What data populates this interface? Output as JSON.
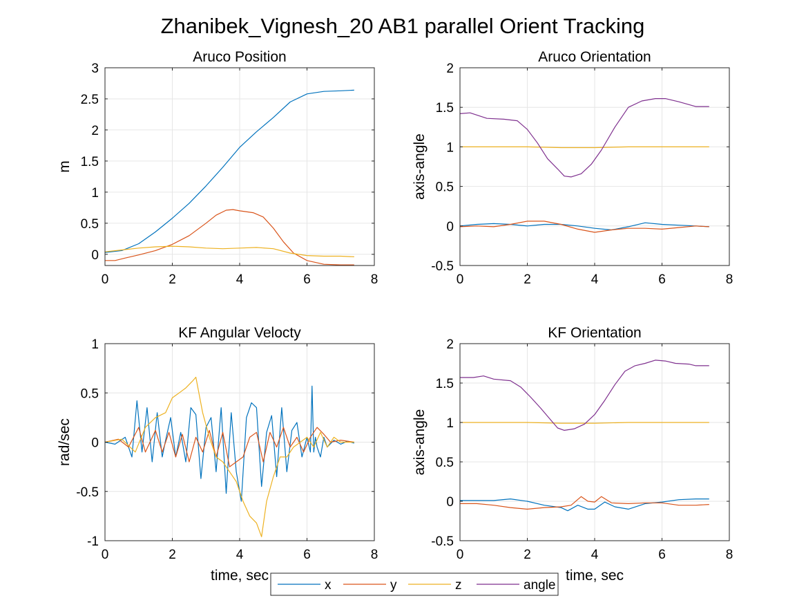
{
  "figure": {
    "title": "Zhanibek_Vignesh_20 AB1 parallel Orient Tracking"
  },
  "colors": {
    "x": "#0072bd",
    "y": "#d95319",
    "z": "#edb120",
    "angle": "#7e2f8e",
    "grid": "#e6e6e6",
    "axis": "#262626"
  },
  "legend": {
    "placement": "bottom-center",
    "entries": [
      {
        "key": "x",
        "label": "x"
      },
      {
        "key": "y",
        "label": "y"
      },
      {
        "key": "z",
        "label": "z"
      },
      {
        "key": "angle",
        "label": "angle"
      }
    ]
  },
  "chart_data": [
    {
      "id": "aruco-position",
      "type": "line",
      "title": "Aruco Position",
      "xlabel": "",
      "ylabel": "m",
      "xlim": [
        0,
        8
      ],
      "ylim": [
        -0.18,
        3
      ],
      "xticks": [
        0,
        2,
        4,
        6,
        8
      ],
      "yticks": [
        0,
        0.5,
        1,
        1.5,
        2,
        2.5,
        3
      ],
      "grid": true,
      "series": [
        {
          "key": "x",
          "x": [
            0,
            0.5,
            1,
            1.5,
            2,
            2.5,
            3,
            3.5,
            4,
            4.5,
            5,
            5.5,
            6,
            6.5,
            7,
            7.4
          ],
          "y": [
            0.03,
            0.06,
            0.17,
            0.36,
            0.58,
            0.82,
            1.1,
            1.4,
            1.72,
            1.97,
            2.2,
            2.45,
            2.58,
            2.62,
            2.63,
            2.64
          ]
        },
        {
          "key": "y",
          "x": [
            0,
            0.3,
            0.6,
            1,
            1.5,
            2,
            2.5,
            3,
            3.3,
            3.6,
            3.8,
            4,
            4.4,
            4.7,
            5,
            5.3,
            5.6,
            6,
            6.5,
            7,
            7.4
          ],
          "y": [
            -0.1,
            -0.1,
            -0.06,
            -0.01,
            0.06,
            0.16,
            0.3,
            0.5,
            0.63,
            0.71,
            0.72,
            0.7,
            0.67,
            0.6,
            0.42,
            0.2,
            0.02,
            -0.1,
            -0.16,
            -0.17,
            -0.17
          ]
        },
        {
          "key": "z",
          "x": [
            0,
            0.5,
            1,
            1.5,
            2,
            2.5,
            3,
            3.5,
            4,
            4.5,
            5,
            5.5,
            6,
            6.5,
            7,
            7.4
          ],
          "y": [
            0.04,
            0.07,
            0.1,
            0.12,
            0.13,
            0.12,
            0.1,
            0.09,
            0.1,
            0.11,
            0.09,
            0.02,
            -0.02,
            -0.03,
            -0.03,
            -0.04
          ]
        }
      ]
    },
    {
      "id": "aruco-orientation",
      "type": "line",
      "title": "Aruco Orientation",
      "xlabel": "",
      "ylabel": "axis-angle",
      "xlim": [
        0,
        8
      ],
      "ylim": [
        -0.5,
        2
      ],
      "xticks": [
        0,
        2,
        4,
        6,
        8
      ],
      "yticks": [
        -0.5,
        0,
        0.5,
        1,
        1.5,
        2
      ],
      "grid": true,
      "series": [
        {
          "key": "x",
          "x": [
            0,
            0.5,
            1,
            1.5,
            2,
            2.5,
            3,
            3.5,
            4,
            4.5,
            5,
            5.5,
            6,
            6.5,
            7,
            7.4
          ],
          "y": [
            0,
            0.02,
            0.03,
            0.02,
            0,
            0.02,
            0.02,
            0,
            -0.03,
            -0.05,
            -0.01,
            0.04,
            0.02,
            0.01,
            0,
            -0.01
          ]
        },
        {
          "key": "y",
          "x": [
            0,
            0.5,
            1,
            1.5,
            2,
            2.5,
            3,
            3.5,
            4,
            4.5,
            5,
            5.5,
            6,
            6.5,
            7,
            7.4
          ],
          "y": [
            -0.01,
            0,
            -0.01,
            0.02,
            0.06,
            0.06,
            0.02,
            -0.04,
            -0.08,
            -0.05,
            -0.03,
            -0.03,
            -0.04,
            -0.02,
            0,
            -0.01
          ]
        },
        {
          "key": "z",
          "x": [
            0,
            1,
            2,
            3,
            3.5,
            4,
            5,
            6,
            7,
            7.4
          ],
          "y": [
            1,
            1,
            1,
            0.99,
            0.99,
            0.99,
            1,
            1,
            1,
            1
          ]
        },
        {
          "key": "angle",
          "x": [
            0,
            0.3,
            0.8,
            1.3,
            1.7,
            2,
            2.3,
            2.6,
            2.9,
            3.1,
            3.3,
            3.6,
            3.9,
            4.2,
            4.6,
            5,
            5.4,
            5.8,
            6.1,
            6.5,
            7,
            7.4
          ],
          "y": [
            1.42,
            1.43,
            1.36,
            1.35,
            1.33,
            1.22,
            1.05,
            0.85,
            0.72,
            0.63,
            0.62,
            0.66,
            0.78,
            0.96,
            1.25,
            1.5,
            1.58,
            1.61,
            1.61,
            1.57,
            1.51,
            1.51
          ]
        }
      ]
    },
    {
      "id": "kf-angular-velocity",
      "type": "line",
      "title": "KF Angular Velocty",
      "xlabel": "time, sec",
      "ylabel": "rad/sec",
      "xlim": [
        0,
        8
      ],
      "ylim": [
        -1,
        1
      ],
      "xticks": [
        0,
        2,
        4,
        6,
        8
      ],
      "yticks": [
        -1,
        -0.5,
        0,
        0.5,
        1
      ],
      "grid": true,
      "series": [
        {
          "key": "x",
          "x": [
            0,
            0.3,
            0.6,
            0.8,
            0.95,
            1.1,
            1.25,
            1.4,
            1.55,
            1.7,
            1.8,
            1.95,
            2.1,
            2.25,
            2.4,
            2.55,
            2.7,
            2.85,
            3,
            3.15,
            3.3,
            3.45,
            3.6,
            3.75,
            3.9,
            4.05,
            4.2,
            4.35,
            4.5,
            4.65,
            4.8,
            4.95,
            5.1,
            5.25,
            5.4,
            5.55,
            5.7,
            5.85,
            6,
            6.1,
            6.15,
            6.2,
            6.25,
            6.3,
            6.4,
            6.5,
            6.6,
            6.8,
            7,
            7.2,
            7.4
          ],
          "y": [
            0,
            -0.02,
            0.05,
            -0.15,
            0.42,
            -0.1,
            0.35,
            -0.2,
            0.3,
            -0.15,
            0.02,
            0.25,
            -0.15,
            0.1,
            -0.2,
            0.35,
            0.28,
            -0.37,
            0.15,
            0.25,
            -0.3,
            0.35,
            -0.52,
            0.3,
            -0.3,
            -0.6,
            0.25,
            0.4,
            0.35,
            -0.45,
            0.1,
            0.27,
            -0.35,
            0.35,
            -0.3,
            0.12,
            0.2,
            -0.15,
            0.05,
            -0.1,
            0.57,
            -0.1,
            0.05,
            -0.05,
            -0.15,
            0.05,
            -0.05,
            0.02,
            -0.02,
            0.01,
            -0.01
          ]
        },
        {
          "key": "y",
          "x": [
            0,
            0.4,
            0.7,
            1,
            1.2,
            1.5,
            1.7,
            1.9,
            2.1,
            2.3,
            2.5,
            2.7,
            2.9,
            3.1,
            3.3,
            3.5,
            3.7,
            3.9,
            4.1,
            4.3,
            4.5,
            4.7,
            4.9,
            5.1,
            5.3,
            5.5,
            5.7,
            5.9,
            6.1,
            6.3,
            6.5,
            6.7,
            7,
            7.4
          ],
          "y": [
            0,
            0.03,
            -0.05,
            0.15,
            -0.1,
            0.12,
            -0.1,
            0.1,
            -0.15,
            0.08,
            -0.2,
            0.05,
            -0.1,
            0.12,
            -0.15,
            0.1,
            -0.25,
            -0.2,
            -0.15,
            0.05,
            0.1,
            -0.2,
            0.1,
            -0.05,
            0.15,
            -0.05,
            0.05,
            -0.1,
            0.05,
            0.15,
            0.08,
            0,
            0.02,
            0
          ]
        },
        {
          "key": "z",
          "x": [
            0,
            0.5,
            0.9,
            1.2,
            1.5,
            1.8,
            2,
            2.2,
            2.4,
            2.6,
            2.7,
            2.9,
            3.1,
            3.3,
            3.5,
            3.7,
            3.9,
            4.1,
            4.3,
            4.5,
            4.65,
            4.8,
            5,
            5.2,
            5.4,
            5.6,
            5.8,
            6,
            6.2,
            6.4,
            6.6,
            6.8,
            7,
            7.4
          ],
          "y": [
            0,
            0.03,
            -0.1,
            0.15,
            0.25,
            0.3,
            0.45,
            0.5,
            0.55,
            0.62,
            0.66,
            0.3,
            0.05,
            -0.15,
            -0.2,
            -0.3,
            -0.4,
            -0.6,
            -0.75,
            -0.82,
            -0.96,
            -0.6,
            -0.35,
            -0.15,
            -0.15,
            -0.05,
            0,
            0.05,
            -0.05,
            0.1,
            -0.05,
            0.05,
            0,
            0
          ]
        }
      ]
    },
    {
      "id": "kf-orientation",
      "type": "line",
      "title": "KF Orientation",
      "xlabel": "time, sec",
      "ylabel": "axis-angle",
      "xlim": [
        0,
        8
      ],
      "ylim": [
        -0.5,
        2
      ],
      "xticks": [
        0,
        2,
        4,
        6,
        8
      ],
      "yticks": [
        -0.5,
        0,
        0.5,
        1,
        1.5,
        2
      ],
      "grid": true,
      "series": [
        {
          "key": "x",
          "x": [
            0,
            0.5,
            1,
            1.5,
            2,
            2.5,
            3,
            3.2,
            3.5,
            3.8,
            4,
            4.3,
            4.6,
            5,
            5.5,
            6,
            6.5,
            7,
            7.4
          ],
          "y": [
            0.01,
            0.01,
            0.01,
            0.03,
            0,
            -0.05,
            -0.08,
            -0.12,
            -0.05,
            -0.1,
            -0.1,
            -0.01,
            -0.07,
            -0.1,
            -0.03,
            -0.01,
            0.02,
            0.03,
            0.03
          ]
        },
        {
          "key": "y",
          "x": [
            0,
            0.5,
            1,
            1.5,
            2,
            2.5,
            3,
            3.3,
            3.6,
            3.8,
            4,
            4.2,
            4.5,
            5,
            5.5,
            6,
            6.5,
            7,
            7.4
          ],
          "y": [
            -0.03,
            -0.03,
            -0.05,
            -0.08,
            -0.1,
            -0.08,
            -0.07,
            -0.05,
            0.06,
            0,
            -0.01,
            0.06,
            -0.02,
            -0.03,
            -0.02,
            -0.02,
            -0.05,
            -0.05,
            -0.04
          ]
        },
        {
          "key": "z",
          "x": [
            0,
            1,
            2,
            3,
            3.5,
            4,
            5,
            6,
            7,
            7.4
          ],
          "y": [
            1,
            1,
            1,
            0.99,
            0.99,
            0.99,
            1,
            1,
            1,
            1
          ]
        },
        {
          "key": "angle",
          "x": [
            0,
            0.4,
            0.7,
            1,
            1.5,
            1.8,
            2.1,
            2.4,
            2.7,
            2.9,
            3.1,
            3.4,
            3.7,
            4,
            4.3,
            4.6,
            4.9,
            5.2,
            5.5,
            5.8,
            6.1,
            6.4,
            6.8,
            7,
            7.4
          ],
          "y": [
            1.57,
            1.57,
            1.59,
            1.55,
            1.53,
            1.45,
            1.32,
            1.18,
            1.03,
            0.93,
            0.9,
            0.92,
            0.98,
            1.1,
            1.28,
            1.48,
            1.65,
            1.72,
            1.75,
            1.79,
            1.78,
            1.75,
            1.74,
            1.72,
            1.72
          ]
        }
      ]
    }
  ]
}
